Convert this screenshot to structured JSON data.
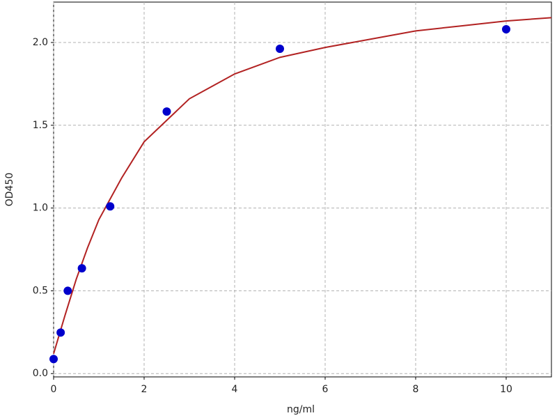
{
  "chart_data": {
    "type": "scatter",
    "xlabel": "ng/ml",
    "ylabel": "OD450",
    "xlim": [
      0,
      11
    ],
    "ylim": [
      -0.02,
      2.244
    ],
    "xticks": [
      0,
      2,
      4,
      6,
      8,
      10
    ],
    "yticks": [
      {
        "value": 0,
        "label": "0.0"
      },
      0.5,
      {
        "value": 1,
        "label": "1.0"
      },
      1.5,
      {
        "value": 2,
        "label": "2.0"
      }
    ],
    "grid": true,
    "series": [
      {
        "style": "line",
        "color": "#b22222",
        "x": [
          0,
          0.25,
          0.5,
          0.75,
          1,
          1.5,
          2,
          3,
          4,
          5,
          6,
          7,
          8,
          9,
          10,
          11
        ],
        "values": [
          0.12,
          0.35,
          0.57,
          0.76,
          0.93,
          1.18,
          1.4,
          1.66,
          1.81,
          1.91,
          1.97,
          2.02,
          2.07,
          2.1,
          2.13,
          2.15
        ]
      },
      {
        "style": "markers",
        "color": "#0000cc",
        "x": [
          0,
          0.156,
          0.3125,
          0.625,
          1.25,
          2.5,
          5,
          10
        ],
        "values": [
          0.088,
          0.248,
          0.5,
          0.636,
          1.01,
          1.583,
          1.962,
          2.08
        ]
      }
    ]
  }
}
